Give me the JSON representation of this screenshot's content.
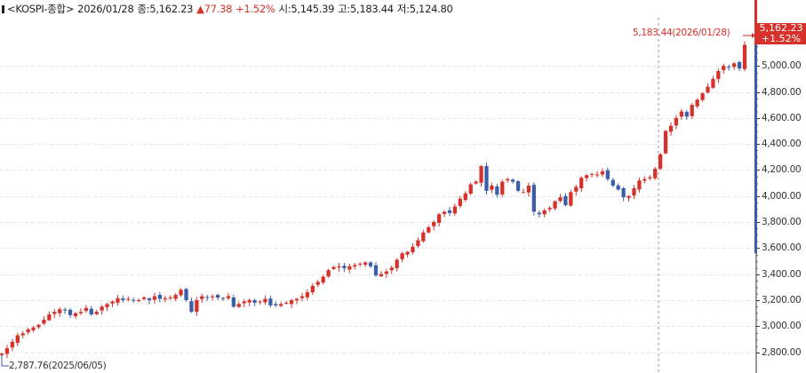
{
  "header": {
    "symbol": "<KOSPI-종합>",
    "date": "2026/01/28",
    "close_label": "종:",
    "close": "5,162.23",
    "change": "▲77.38",
    "change_pct": "+1.52%",
    "open_label": "시:",
    "open": "5,145.39",
    "high_label": "고:",
    "high": "5,183.44",
    "low_label": "저:",
    "low": "5,124.80"
  },
  "price_tag": {
    "price": "5,162.23",
    "pct": "+1.52%"
  },
  "annotations": {
    "max": "5,183.44(2026/01/28)",
    "min": "2,787.76(2025/06/05)"
  },
  "colors": {
    "up": "#d6312b",
    "down": "#3a5fa8",
    "grid": "#e6e6e6",
    "axis": "#333333"
  },
  "chart_data": {
    "type": "candlestick",
    "y_axis_position": "right",
    "y_ticks": [
      "2,800.00",
      "3,000.00",
      "3,200.00",
      "3,400.00",
      "3,600.00",
      "3,800.00",
      "4,000.00",
      "4,200.00",
      "4,400.00",
      "4,600.00",
      "4,800.00",
      "5,000.00"
    ],
    "ylim": [
      2640,
      5370
    ],
    "last_close": 5162.23,
    "closes": [
      2788,
      2830,
      2880,
      2930,
      2945,
      2975,
      2990,
      3010,
      3050,
      3090,
      3110,
      3130,
      3120,
      3085,
      3100,
      3110,
      3140,
      3090,
      3110,
      3150,
      3170,
      3190,
      3215,
      3200,
      3210,
      3195,
      3200,
      3220,
      3200,
      3230,
      3210,
      3215,
      3220,
      3240,
      3280,
      3200,
      3110,
      3200,
      3230,
      3220,
      3230,
      3220,
      3210,
      3230,
      3150,
      3170,
      3190,
      3200,
      3180,
      3190,
      3210,
      3160,
      3160,
      3170,
      3180,
      3200,
      3210,
      3230,
      3260,
      3310,
      3340,
      3380,
      3430,
      3455,
      3460,
      3445,
      3460,
      3470,
      3480,
      3490,
      3460,
      3390,
      3400,
      3420,
      3450,
      3510,
      3560,
      3570,
      3610,
      3660,
      3720,
      3760,
      3800,
      3860,
      3880,
      3870,
      3920,
      3980,
      4020,
      4090,
      4110,
      4230,
      4040,
      4080,
      4010,
      4110,
      4130,
      4110,
      4040,
      4030,
      4080,
      3880,
      3860,
      3890,
      3910,
      3960,
      3990,
      3930,
      4030,
      4070,
      4140,
      4160,
      4170,
      4165,
      4190,
      4130,
      4080,
      4050,
      3990,
      4000,
      4060,
      4120,
      4130,
      4145,
      4210,
      4320,
      4500,
      4540,
      4600,
      4650,
      4610,
      4700,
      4740,
      4790,
      4840,
      4900,
      4960,
      5000,
      4990,
      5020,
      4980,
      5162
    ]
  }
}
